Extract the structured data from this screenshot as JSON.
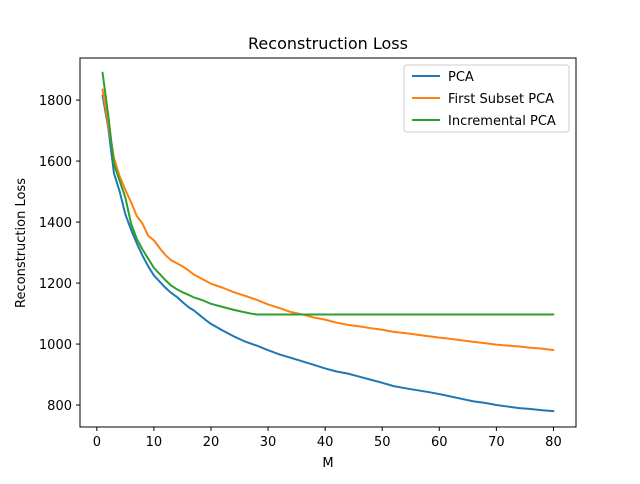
{
  "chart_data": {
    "type": "line",
    "title": "Reconstruction Loss",
    "xlabel": "M",
    "ylabel": "Reconstruction Loss",
    "xlim": [
      -2.95,
      83.95
    ],
    "ylim": [
      728,
      1938
    ],
    "xticks": [
      0,
      10,
      20,
      30,
      40,
      50,
      60,
      70,
      80
    ],
    "yticks": [
      800,
      1000,
      1200,
      1400,
      1600,
      1800
    ],
    "grid": false,
    "legend_position": "top-right",
    "series": [
      {
        "name": "PCA",
        "color": "#1f77b4",
        "x": [
          1,
          2,
          3,
          4,
          5,
          6,
          7,
          8,
          9,
          10,
          11,
          12,
          13,
          14,
          15,
          16,
          17,
          18,
          19,
          20,
          22,
          24,
          26,
          28,
          30,
          32,
          35,
          38,
          40,
          42,
          44,
          46,
          48,
          50,
          52,
          55,
          58,
          60,
          62,
          64,
          66,
          68,
          70,
          72,
          74,
          76,
          78,
          80
        ],
        "y": [
          1815,
          1710,
          1560,
          1500,
          1425,
          1375,
          1330,
          1290,
          1255,
          1225,
          1205,
          1185,
          1168,
          1155,
          1138,
          1122,
          1110,
          1095,
          1080,
          1066,
          1045,
          1025,
          1008,
          995,
          980,
          966,
          949,
          932,
          920,
          910,
          903,
          893,
          883,
          873,
          862,
          852,
          843,
          836,
          828,
          820,
          812,
          807,
          800,
          795,
          790,
          787,
          783,
          780
        ]
      },
      {
        "name": "First Subset PCA",
        "color": "#ff7f0e",
        "x": [
          1,
          2,
          3,
          4,
          5,
          6,
          7,
          8,
          9,
          10,
          11,
          12,
          13,
          14,
          15,
          16,
          17,
          18,
          19,
          20,
          22,
          24,
          26,
          28,
          30,
          32,
          34,
          36,
          38,
          40,
          42,
          44,
          46,
          48,
          50,
          52,
          54,
          56,
          58,
          60,
          62,
          64,
          66,
          68,
          70,
          72,
          74,
          76,
          78,
          80
        ],
        "y": [
          1835,
          1720,
          1610,
          1550,
          1505,
          1465,
          1420,
          1395,
          1355,
          1340,
          1315,
          1292,
          1275,
          1265,
          1255,
          1242,
          1228,
          1218,
          1208,
          1198,
          1185,
          1170,
          1158,
          1145,
          1130,
          1118,
          1105,
          1097,
          1087,
          1080,
          1070,
          1063,
          1058,
          1052,
          1047,
          1040,
          1036,
          1031,
          1026,
          1021,
          1017,
          1012,
          1007,
          1003,
          998,
          995,
          992,
          988,
          985,
          980
        ]
      },
      {
        "name": "Incremental PCA",
        "color": "#2ca02c",
        "x": [
          1,
          2,
          3,
          4,
          5,
          6,
          7,
          8,
          9,
          10,
          11,
          12,
          13,
          14,
          15,
          16,
          17,
          18,
          19,
          20,
          22,
          24,
          26,
          27,
          28,
          30,
          35,
          40,
          50,
          60,
          70,
          80
        ],
        "y": [
          1890,
          1750,
          1590,
          1535,
          1480,
          1395,
          1345,
          1310,
          1280,
          1250,
          1230,
          1210,
          1192,
          1180,
          1170,
          1162,
          1153,
          1147,
          1140,
          1132,
          1122,
          1112,
          1104,
          1100,
          1097,
          1097,
          1097,
          1097,
          1097,
          1097,
          1097,
          1097
        ]
      }
    ]
  }
}
